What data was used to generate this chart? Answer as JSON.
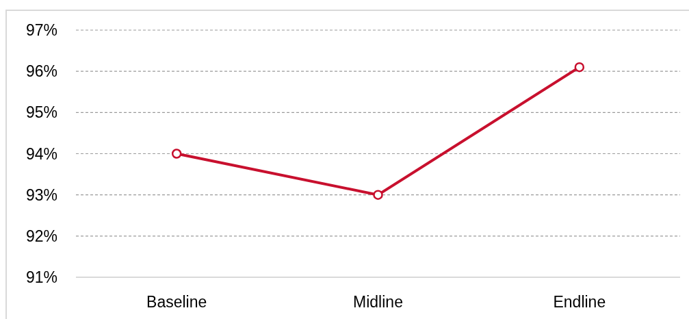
{
  "chart_data": {
    "type": "line",
    "categories": [
      "Baseline",
      "Midline",
      "Endline"
    ],
    "series": [
      {
        "color": "#c8102e",
        "values": [
          94,
          93,
          96.1
        ]
      }
    ],
    "ylim": [
      91,
      97
    ],
    "yticks": [
      {
        "value": 91,
        "label": "91%"
      },
      {
        "value": 92,
        "label": "92%"
      },
      {
        "value": 93,
        "label": "93%"
      },
      {
        "value": 94,
        "label": "94%"
      },
      {
        "value": 95,
        "label": "95%"
      },
      {
        "value": 96,
        "label": "96%"
      },
      {
        "value": 97,
        "label": "97%"
      }
    ],
    "grid": "y",
    "marker": "circle",
    "line_style": "solid"
  }
}
